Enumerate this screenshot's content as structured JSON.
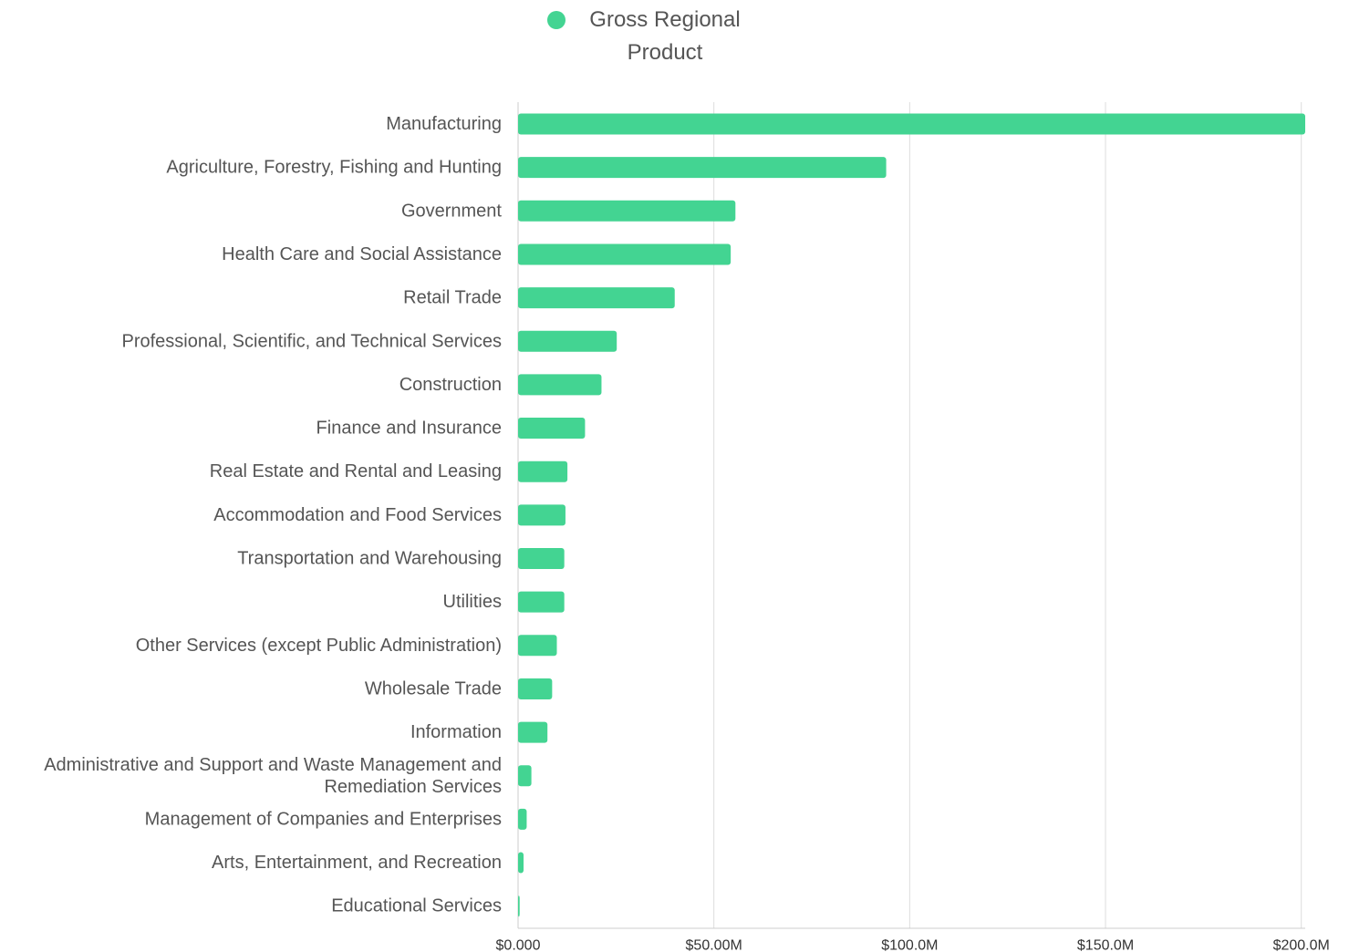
{
  "chart_data": {
    "type": "bar",
    "orientation": "horizontal",
    "categories": [
      "Manufacturing",
      "Agriculture, Forestry, Fishing and Hunting",
      "Government",
      "Health Care and Social Assistance",
      "Retail Trade",
      "Professional, Scientific, and Technical Services",
      "Construction",
      "Finance and Insurance",
      "Real Estate and Rental and Leasing",
      "Accommodation and Food Services",
      "Transportation and Warehousing",
      "Utilities",
      "Other Services (except Public Administration)",
      "Wholesale Trade",
      "Information",
      "Administrative and Support and Waste Management and Remediation Services",
      "Management of Companies and Enterprises",
      "Arts, Entertainment, and Recreation",
      "Educational Services"
    ],
    "category_lines": [
      [
        "Manufacturing"
      ],
      [
        "Agriculture, Forestry, Fishing and Hunting"
      ],
      [
        "Government"
      ],
      [
        "Health Care and Social Assistance"
      ],
      [
        "Retail Trade"
      ],
      [
        "Professional, Scientific, and Technical Services"
      ],
      [
        "Construction"
      ],
      [
        "Finance and Insurance"
      ],
      [
        "Real Estate and Rental and Leasing"
      ],
      [
        "Accommodation and Food Services"
      ],
      [
        "Transportation and Warehousing"
      ],
      [
        "Utilities"
      ],
      [
        "Other Services (except Public Administration)"
      ],
      [
        "Wholesale Trade"
      ],
      [
        "Information"
      ],
      [
        "Administrative and Support and Waste Management and",
        "Remediation Services"
      ],
      [
        "Management of Companies and Enterprises"
      ],
      [
        "Arts, Entertainment, and Recreation"
      ],
      [
        "Educational Services"
      ]
    ],
    "series": [
      {
        "name": "Gross Regional Product",
        "color": "#43d492",
        "values": [
          201.0,
          94.0,
          55.5,
          54.3,
          40.0,
          25.2,
          21.3,
          17.1,
          12.6,
          12.1,
          11.8,
          11.8,
          9.9,
          8.7,
          7.5,
          3.4,
          2.2,
          1.4,
          0.4
        ]
      }
    ],
    "xlim": [
      0,
      201
    ],
    "xticks": [
      0,
      50,
      100,
      150,
      200
    ],
    "xtick_labels": [
      "$0.000",
      "$50.00M",
      "$100.0M",
      "$150.0M",
      "$200.0M"
    ],
    "grid": true,
    "legend_position": "top-center"
  }
}
